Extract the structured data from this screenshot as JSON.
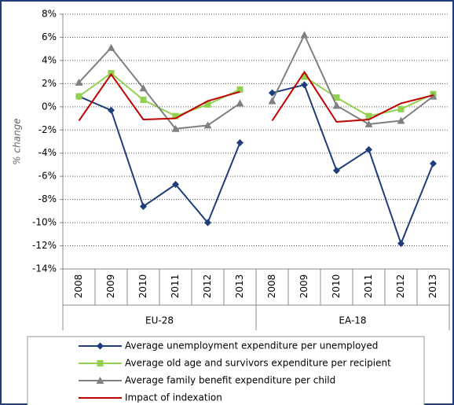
{
  "chart_data": {
    "type": "line",
    "y_label": "% change",
    "groups": [
      {
        "name": "EU-28",
        "categories": [
          "2008",
          "2009",
          "2010",
          "2011",
          "2012",
          "2013"
        ]
      },
      {
        "name": "EA-18",
        "categories": [
          "2008",
          "2009",
          "2010",
          "2011",
          "2012",
          "2013"
        ]
      }
    ],
    "series": [
      {
        "name": "Average unemployment expenditure per unemployed",
        "color": "#1f3d7a",
        "marker": "diamond",
        "values": [
          [
            0.9,
            -0.3,
            -8.6,
            -6.7,
            -10.0,
            -3.1
          ],
          [
            1.2,
            1.9,
            -5.5,
            -3.7,
            -11.8,
            -4.9
          ]
        ]
      },
      {
        "name": "Average old age and survivors expenditure per recipient",
        "color": "#92d050",
        "marker": "square",
        "values": [
          [
            0.9,
            2.9,
            0.6,
            -0.8,
            0.2,
            1.5
          ],
          [
            null,
            2.6,
            0.8,
            -0.8,
            -0.2,
            1.1
          ]
        ]
      },
      {
        "name": "Average family benefit expenditure per child",
        "color": "#808080",
        "marker": "triangle",
        "values": [
          [
            2.1,
            5.1,
            1.6,
            -1.9,
            -1.6,
            0.3
          ],
          [
            0.5,
            6.2,
            0.1,
            -1.5,
            -1.2,
            0.9
          ]
        ]
      },
      {
        "name": "Impact of indexation",
        "color": "#c00000",
        "marker": "none",
        "values": [
          [
            -1.2,
            2.8,
            -1.1,
            -1.0,
            0.5,
            1.3
          ],
          [
            -1.2,
            3.0,
            -1.3,
            -1.1,
            0.3,
            1.0
          ]
        ]
      }
    ],
    "ylim": [
      -14,
      8
    ],
    "yticks": [
      {
        "value": -14,
        "label": "-14%"
      },
      {
        "value": -12,
        "label": "-12%"
      },
      {
        "value": -10,
        "label": "-10%"
      },
      {
        "value": -8,
        "label": "-8%"
      },
      {
        "value": -6,
        "label": "-6%"
      },
      {
        "value": -4,
        "label": "-4%"
      },
      {
        "value": -2,
        "label": "-2%"
      },
      {
        "value": 0,
        "label": "0%"
      },
      {
        "value": 2,
        "label": "2%"
      },
      {
        "value": 4,
        "label": "4%"
      },
      {
        "value": 6,
        "label": "6%"
      },
      {
        "value": 8,
        "label": "8%"
      }
    ],
    "grid": true
  }
}
